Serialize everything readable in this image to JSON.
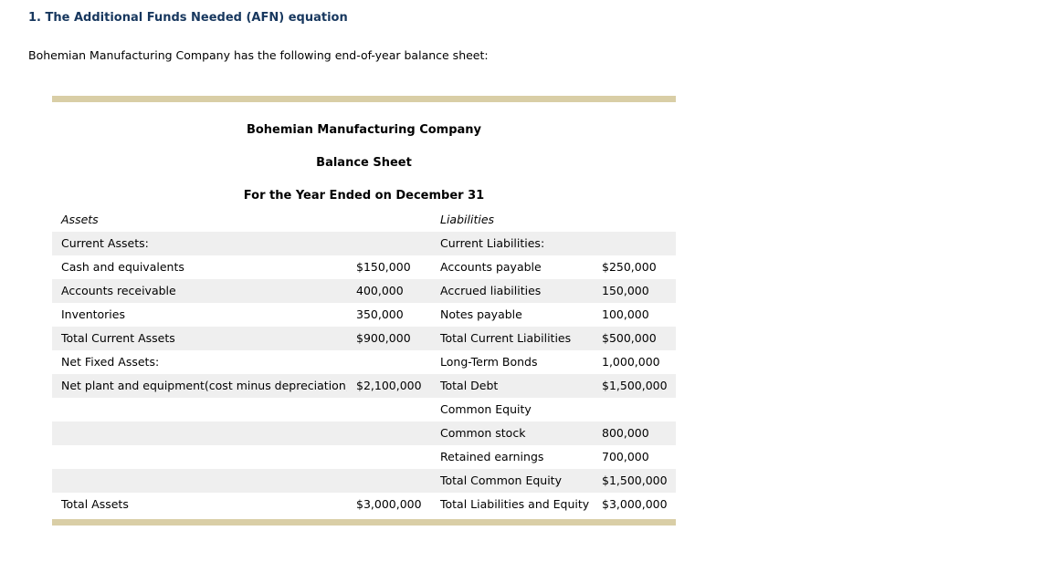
{
  "page": {
    "section_title": "1. The Additional Funds Needed (AFN) equation",
    "intro": "Bohemian Manufacturing Company has the following end-of-year balance sheet:"
  },
  "balance_sheet": {
    "company": "Bohemian Manufacturing Company",
    "statement": "Balance Sheet",
    "period": "For the Year Ended on December 31",
    "rows": [
      {
        "header": true,
        "cells": [
          "Assets",
          "",
          "Liabilities",
          ""
        ]
      },
      {
        "cells": [
          "Current Assets:",
          "",
          "Current Liabilities:",
          ""
        ]
      },
      {
        "cells": [
          "Cash and equivalents",
          "$150,000",
          "Accounts payable",
          "$250,000"
        ]
      },
      {
        "cells": [
          "Accounts receivable",
          "400,000",
          "Accrued liabilities",
          "150,000"
        ]
      },
      {
        "cells": [
          "Inventories",
          "350,000",
          "Notes payable",
          "100,000"
        ]
      },
      {
        "cells": [
          "Total Current Assets",
          "$900,000",
          "Total Current Liabilities",
          "$500,000"
        ]
      },
      {
        "cells": [
          "Net Fixed Assets:",
          "",
          "Long-Term Bonds",
          "1,000,000"
        ]
      },
      {
        "cells": [
          "Net plant and equipment(cost minus depreciation)",
          "$2,100,000",
          "Total Debt",
          "$1,500,000"
        ]
      },
      {
        "cells": [
          "",
          "",
          "Common Equity",
          ""
        ]
      },
      {
        "cells": [
          "",
          "",
          "Common stock",
          "800,000"
        ]
      },
      {
        "cells": [
          "",
          "",
          "Retained earnings",
          "700,000"
        ]
      },
      {
        "cells": [
          "",
          "",
          "Total Common Equity",
          "$1,500,000"
        ]
      },
      {
        "cells": [
          "Total Assets",
          "$3,000,000",
          "Total Liabilities and Equity",
          "$3,000,000"
        ]
      }
    ]
  },
  "colors": {
    "title_color": "#17375e",
    "shade_color": "#efefef",
    "rule_color": "#d9cea6"
  }
}
